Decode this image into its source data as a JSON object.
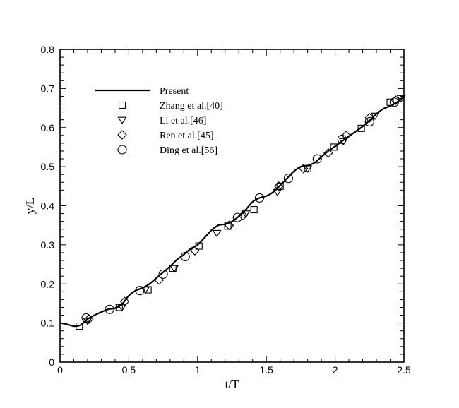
{
  "chart_data": {
    "type": "scatter",
    "xlabel": "t/T",
    "ylabel": "y/L",
    "xlim": [
      0,
      2.5
    ],
    "ylim": [
      0,
      0.8
    ],
    "xticks": [
      "0",
      "0.5",
      "1",
      "1.5",
      "2",
      "2.5"
    ],
    "yticks": [
      "0",
      "0.1",
      "0.2",
      "0.3",
      "0.4",
      "0.5",
      "0.6",
      "0.7",
      "0.8"
    ],
    "grid": false,
    "legend_position": "top-left",
    "series": [
      {
        "name": "Present",
        "kind": "line",
        "marker": "none",
        "x": [
          0,
          0.05,
          0.1,
          0.15,
          0.2,
          0.25,
          0.3,
          0.35,
          0.4,
          0.45,
          0.5,
          0.55,
          0.6,
          0.65,
          0.7,
          0.75,
          0.8,
          0.85,
          0.9,
          0.95,
          1.0,
          1.05,
          1.1,
          1.15,
          1.2,
          1.25,
          1.3,
          1.35,
          1.4,
          1.45,
          1.5,
          1.55,
          1.6,
          1.65,
          1.7,
          1.75,
          1.8,
          1.85,
          1.9,
          1.95,
          2.0,
          2.05,
          2.1,
          2.15,
          2.2,
          2.25,
          2.3,
          2.35,
          2.4,
          2.45,
          2.5
        ],
        "y": [
          0.1,
          0.097,
          0.092,
          0.095,
          0.11,
          0.12,
          0.128,
          0.135,
          0.138,
          0.148,
          0.17,
          0.183,
          0.19,
          0.2,
          0.215,
          0.23,
          0.245,
          0.262,
          0.275,
          0.29,
          0.3,
          0.318,
          0.337,
          0.35,
          0.353,
          0.36,
          0.373,
          0.39,
          0.41,
          0.42,
          0.425,
          0.435,
          0.452,
          0.47,
          0.488,
          0.5,
          0.503,
          0.51,
          0.525,
          0.54,
          0.552,
          0.565,
          0.578,
          0.59,
          0.603,
          0.618,
          0.635,
          0.648,
          0.655,
          0.665,
          0.68
        ]
      },
      {
        "name": "Zhang et al.[40]",
        "marker": "square",
        "x": [
          0.14,
          0.43,
          0.64,
          0.82,
          1.01,
          1.22,
          1.41,
          1.6,
          1.8,
          1.99,
          2.19,
          2.4
        ],
        "y": [
          0.092,
          0.14,
          0.185,
          0.24,
          0.297,
          0.348,
          0.39,
          0.45,
          0.495,
          0.55,
          0.598,
          0.665
        ]
      },
      {
        "name": "Li et al.[46]",
        "marker": "triangle-down",
        "x": [
          0.2,
          0.45,
          0.62,
          0.83,
          1.14,
          1.35,
          1.58,
          1.8,
          2.06,
          2.29,
          2.48
        ],
        "y": [
          0.105,
          0.14,
          0.185,
          0.24,
          0.33,
          0.38,
          0.435,
          0.495,
          0.565,
          0.63,
          0.675
        ]
      },
      {
        "name": "Ren et al.[45]",
        "marker": "diamond",
        "x": [
          0.21,
          0.47,
          0.72,
          0.98,
          1.23,
          1.33,
          1.59,
          1.77,
          1.95,
          2.08,
          2.25,
          2.44
        ],
        "y": [
          0.11,
          0.155,
          0.21,
          0.285,
          0.35,
          0.375,
          0.45,
          0.495,
          0.535,
          0.58,
          0.625,
          0.67
        ]
      },
      {
        "name": "Ding et al.[56]",
        "marker": "circle",
        "x": [
          0.19,
          0.36,
          0.58,
          0.75,
          0.91,
          1.29,
          1.45,
          1.66,
          1.87,
          2.05,
          2.25,
          2.43
        ],
        "y": [
          0.113,
          0.135,
          0.183,
          0.225,
          0.27,
          0.37,
          0.42,
          0.47,
          0.52,
          0.57,
          0.615,
          0.665
        ]
      }
    ]
  }
}
